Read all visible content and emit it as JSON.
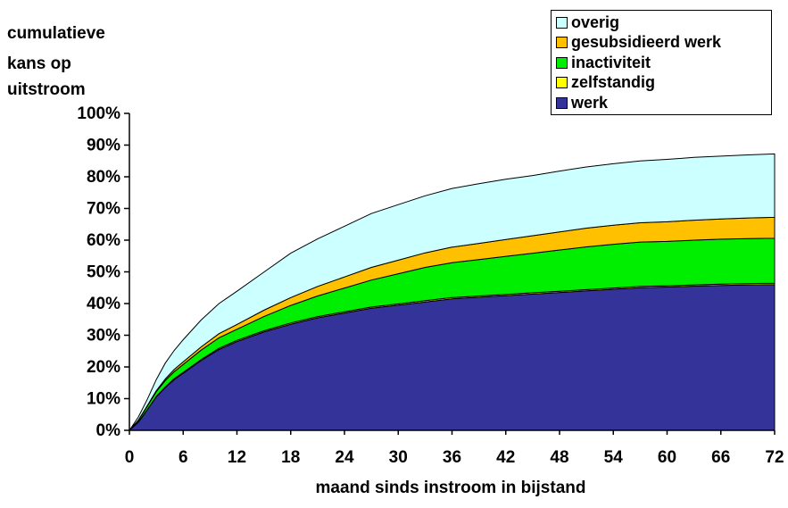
{
  "chart_data": {
    "type": "area",
    "stacked": true,
    "ylabel_lines": [
      "cumulatieve",
      "kans op",
      "uitstroom"
    ],
    "xlabel": "maand sinds instroom in bijstand",
    "x_ticks": [
      0,
      6,
      12,
      18,
      24,
      30,
      36,
      42,
      48,
      54,
      60,
      66,
      72
    ],
    "y_ticks": [
      "0%",
      "10%",
      "20%",
      "30%",
      "40%",
      "50%",
      "60%",
      "70%",
      "80%",
      "90%",
      "100%"
    ],
    "xlim": [
      0,
      72
    ],
    "ylim": [
      0,
      100
    ],
    "legend_position": "top-right",
    "x": [
      0,
      1,
      2,
      3,
      4,
      5,
      6,
      8,
      10,
      12,
      15,
      18,
      21,
      24,
      27,
      30,
      33,
      36,
      39,
      42,
      45,
      48,
      51,
      54,
      57,
      60,
      63,
      66,
      69,
      72
    ],
    "series": [
      {
        "name": "werk",
        "color": "#333399",
        "values": [
          0,
          2.5,
          6.5,
          10.5,
          13.5,
          16,
          18,
          22,
          25.5,
          28,
          31,
          33.5,
          35.5,
          37,
          38.5,
          39.5,
          40.5,
          41.5,
          42,
          42.5,
          43,
          43.5,
          44,
          44.5,
          45,
          45.2,
          45.5,
          45.7,
          45.9,
          46
        ]
      },
      {
        "name": "zelfstandig",
        "color": "#ffff00",
        "values": [
          0,
          0.1,
          0.1,
          0.2,
          0.2,
          0.3,
          0.3,
          0.3,
          0.4,
          0.4,
          0.4,
          0.4,
          0.4,
          0.4,
          0.4,
          0.4,
          0.4,
          0.4,
          0.4,
          0.4,
          0.4,
          0.4,
          0.4,
          0.4,
          0.4,
          0.4,
          0.4,
          0.4,
          0.4,
          0.4
        ]
      },
      {
        "name": "inactiviteit",
        "color": "#00ee00",
        "values": [
          0,
          0.5,
          1,
          1.5,
          2,
          2.2,
          2.5,
          3,
          3.3,
          3.5,
          4.5,
          5.5,
          6.5,
          7.5,
          8.5,
          9.5,
          10.5,
          11,
          11.5,
          12,
          12.5,
          13,
          13.5,
          13.8,
          14,
          14,
          14.1,
          14.2,
          14.2,
          14.2
        ]
      },
      {
        "name": "gesubsidieerd werk",
        "color": "#ffc000",
        "values": [
          0,
          0.1,
          0.2,
          0.3,
          0.5,
          0.7,
          0.8,
          1,
          1.3,
          1.5,
          2,
          2.5,
          3,
          3.5,
          4,
          4.3,
          4.6,
          4.9,
          5.1,
          5.3,
          5.5,
          5.7,
          5.9,
          6,
          6.1,
          6.2,
          6.3,
          6.4,
          6.5,
          6.6
        ]
      },
      {
        "name": "overig",
        "color": "#ccffff",
        "values": [
          0,
          1,
          2,
          3.5,
          5,
          6,
          7,
          8.5,
          9.5,
          10.5,
          12,
          14,
          15,
          16,
          17,
          17.5,
          18,
          18.5,
          18.8,
          19,
          19,
          19.2,
          19.3,
          19.4,
          19.5,
          19.7,
          19.8,
          19.8,
          19.9,
          20
        ]
      }
    ]
  }
}
